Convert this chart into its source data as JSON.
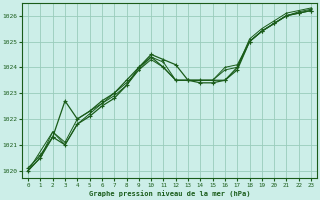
{
  "bg_color": "#cceee8",
  "grid_color": "#99ccbb",
  "line_color": "#1a5c1a",
  "title": "Graphe pression niveau de la mer (hPa)",
  "xlim": [
    -0.5,
    23.5
  ],
  "ylim": [
    1019.7,
    1026.5
  ],
  "yticks": [
    1020,
    1021,
    1022,
    1023,
    1024,
    1025,
    1026
  ],
  "xticks": [
    0,
    1,
    2,
    3,
    4,
    5,
    6,
    7,
    8,
    9,
    10,
    11,
    12,
    13,
    14,
    15,
    16,
    17,
    18,
    19,
    20,
    21,
    22,
    23
  ],
  "series": [
    {
      "x": [
        0,
        1,
        2,
        3,
        4,
        5,
        6,
        7,
        8,
        9,
        10,
        11,
        12,
        13,
        14,
        15,
        16,
        17,
        18,
        19,
        20,
        21,
        22,
        23
      ],
      "y": [
        1020.0,
        1020.5,
        1021.3,
        1021.0,
        1021.8,
        1022.1,
        1022.5,
        1022.8,
        1023.3,
        1024.0,
        1024.5,
        1024.3,
        1024.1,
        1023.5,
        1023.5,
        1023.5,
        1023.5,
        1023.9,
        1025.0,
        1025.4,
        1025.7,
        1026.0,
        1026.1,
        1026.2
      ],
      "lw": 0.9,
      "marker": "+",
      "ms": 2.5
    },
    {
      "x": [
        0,
        1,
        2,
        3,
        4,
        5,
        6,
        7,
        8,
        9,
        10,
        11,
        12,
        13,
        14,
        15,
        16,
        17,
        18,
        19,
        20,
        21,
        22,
        23
      ],
      "y": [
        1020.1,
        1020.6,
        1021.3,
        1022.7,
        1022.0,
        1022.3,
        1022.7,
        1023.0,
        1023.5,
        1024.0,
        1024.4,
        1024.0,
        1023.5,
        1023.5,
        1023.4,
        1023.4,
        1023.5,
        1024.0,
        1025.0,
        1025.4,
        1025.7,
        1026.0,
        1026.1,
        1026.2
      ],
      "lw": 0.9,
      "marker": "+",
      "ms": 2.5
    },
    {
      "x": [
        0,
        1,
        2,
        3,
        4,
        5,
        6,
        7,
        8,
        9,
        10,
        11,
        12,
        13,
        14,
        15,
        16,
        17,
        18,
        19,
        20,
        21,
        22,
        23
      ],
      "y": [
        1020.0,
        1020.5,
        1021.5,
        1021.1,
        1022.0,
        1022.3,
        1022.6,
        1023.0,
        1023.4,
        1023.9,
        1024.3,
        1024.0,
        1023.5,
        1023.5,
        1023.5,
        1023.5,
        1023.9,
        1024.0,
        1025.1,
        1025.5,
        1025.8,
        1026.1,
        1026.2,
        1026.3
      ],
      "lw": 0.7,
      "marker": "+",
      "ms": 2.0
    },
    {
      "x": [
        0,
        2,
        3,
        4,
        5,
        6,
        7,
        8,
        9,
        10,
        11,
        12,
        13,
        14,
        15,
        16,
        17,
        18,
        19,
        20,
        21,
        22,
        23
      ],
      "y": [
        1020.0,
        1021.5,
        1021.0,
        1021.8,
        1022.2,
        1022.6,
        1022.9,
        1023.3,
        1023.9,
        1024.4,
        1024.2,
        1023.5,
        1023.5,
        1023.5,
        1023.5,
        1024.0,
        1024.1,
        1025.0,
        1025.4,
        1025.7,
        1026.0,
        1026.15,
        1026.25
      ],
      "lw": 0.7,
      "marker": "+",
      "ms": 2.0
    }
  ]
}
